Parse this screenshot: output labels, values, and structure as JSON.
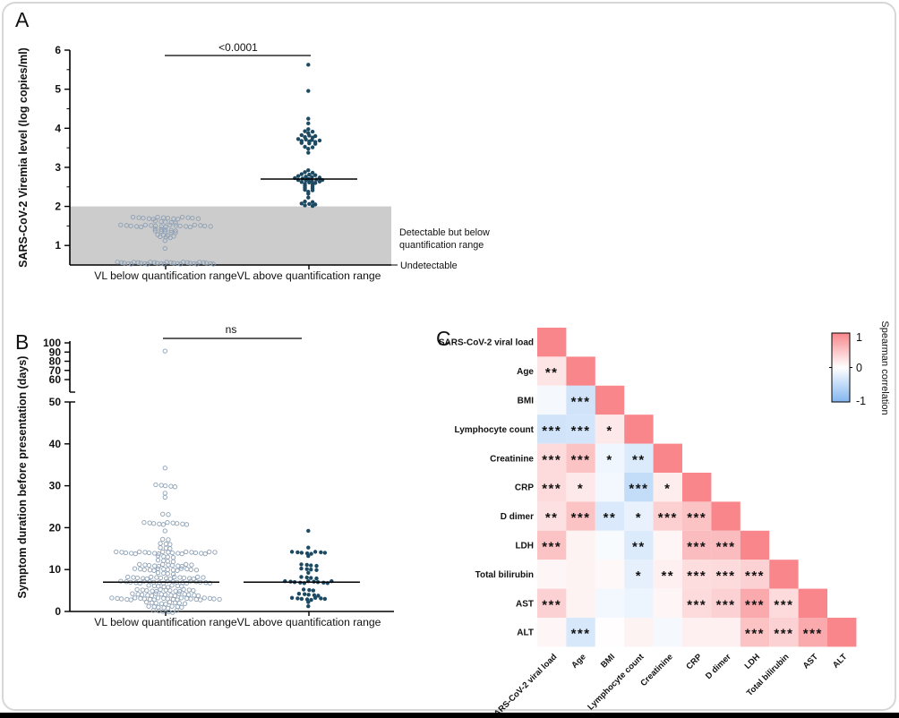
{
  "colors": {
    "filled_marker": "#1d4a63",
    "open_marker_stroke": "#8da0b5",
    "band_fill": "#cccccc",
    "axis": "#000000",
    "heatmap_max": "#f8868a",
    "heatmap_mid": "#ffffff",
    "heatmap_min": "#82b6f0"
  },
  "chart_data": [
    {
      "panel_letter": "A",
      "type": "scatter",
      "title": "",
      "ylabel": "SARS-CoV-2 Viremia level (log copies/ml)",
      "ylim": [
        0.45,
        6.0
      ],
      "yticks": [
        1,
        2,
        3,
        4,
        5,
        6
      ],
      "categories": [
        "VL below quantification range",
        "VL above quantification range"
      ],
      "significance": "<0.0001",
      "shaded_region": {
        "from": 0.45,
        "to": 2.0,
        "label_line1": "Detectable but below",
        "label_line2": "quantification range"
      },
      "undetectable_label": "Undetectable",
      "series": [
        {
          "name": "VL below quantification range",
          "marker": "open-circle",
          "points": [
            [
              0.55,
              30
            ],
            [
              0.9,
              1
            ],
            [
              1.1,
              1
            ],
            [
              1.2,
              3
            ],
            [
              1.25,
              4
            ],
            [
              1.35,
              5
            ],
            [
              1.4,
              5
            ],
            [
              1.5,
              19
            ],
            [
              1.6,
              5
            ],
            [
              1.7,
              14
            ]
          ]
        },
        {
          "name": "VL above quantification range",
          "marker": "filled-circle",
          "median": 2.7,
          "points": [
            [
              2.0,
              2
            ],
            [
              2.05,
              3
            ],
            [
              2.1,
              2
            ],
            [
              2.2,
              1
            ],
            [
              2.3,
              1
            ],
            [
              2.35,
              1
            ],
            [
              2.4,
              2
            ],
            [
              2.45,
              2
            ],
            [
              2.5,
              2
            ],
            [
              2.55,
              2
            ],
            [
              2.6,
              3
            ],
            [
              2.65,
              4
            ],
            [
              2.7,
              5
            ],
            [
              2.75,
              4
            ],
            [
              2.8,
              3
            ],
            [
              2.85,
              2
            ],
            [
              2.9,
              1
            ],
            [
              3.35,
              1
            ],
            [
              3.45,
              1
            ],
            [
              3.5,
              2
            ],
            [
              3.6,
              3
            ],
            [
              3.65,
              3
            ],
            [
              3.7,
              4
            ],
            [
              3.75,
              2
            ],
            [
              3.8,
              3
            ],
            [
              3.85,
              1
            ],
            [
              3.9,
              2
            ],
            [
              3.95,
              1
            ],
            [
              4.1,
              1
            ],
            [
              4.22,
              1
            ],
            [
              4.93,
              1
            ],
            [
              5.6,
              1
            ]
          ]
        }
      ]
    },
    {
      "panel_letter": "B",
      "type": "scatter",
      "title": "",
      "ylabel": "Symptom duration before presentation (days)",
      "ylim": [
        0,
        100
      ],
      "axis_break": [
        50,
        60
      ],
      "yticks_lower": [
        0,
        10,
        20,
        30,
        40,
        50
      ],
      "yticks_upper": [
        60,
        70,
        80,
        90,
        100
      ],
      "categories": [
        "VL below quantification range",
        "VL above quantification range"
      ],
      "significance": "ns",
      "series": [
        {
          "name": "VL below quantification range",
          "marker": "open-circle",
          "median": 7,
          "points": [
            [
              0,
              6
            ],
            [
              1,
              8
            ],
            [
              2,
              9
            ],
            [
              3,
              24
            ],
            [
              4,
              15
            ],
            [
              5,
              13
            ],
            [
              6,
              8
            ],
            [
              7,
              20
            ],
            [
              8,
              17
            ],
            [
              9,
              4
            ],
            [
              10,
              14
            ],
            [
              11,
              12
            ],
            [
              12,
              4
            ],
            [
              13,
              4
            ],
            [
              14,
              22
            ],
            [
              15,
              3
            ],
            [
              16,
              3
            ],
            [
              17,
              2
            ],
            [
              19,
              1
            ],
            [
              21,
              10
            ],
            [
              23,
              2
            ],
            [
              27,
              1
            ],
            [
              28,
              1
            ],
            [
              30,
              5
            ],
            [
              34,
              1
            ],
            [
              90,
              1
            ]
          ]
        },
        {
          "name": "VL above quantification range",
          "marker": "filled-circle",
          "median": 7,
          "points": [
            [
              1,
              1
            ],
            [
              2,
              1
            ],
            [
              3,
              8
            ],
            [
              4,
              5
            ],
            [
              5,
              3
            ],
            [
              7,
              11
            ],
            [
              8,
              4
            ],
            [
              9,
              1
            ],
            [
              10,
              4
            ],
            [
              11,
              4
            ],
            [
              13,
              1
            ],
            [
              14,
              8
            ],
            [
              15,
              1
            ],
            [
              19,
              1
            ]
          ]
        }
      ]
    },
    {
      "panel_letter": "C",
      "type": "heatmap",
      "title": "",
      "variables": [
        "SARS-CoV-2 viral load",
        "Age",
        "BMI",
        "Lymphocyte count",
        "Creatinine",
        "CRP",
        "D dimer",
        "LDH",
        "Total bilirubin",
        "AST",
        "ALT"
      ],
      "correlations_lower_triangle": [
        [
          1
        ],
        [
          0.22,
          1
        ],
        [
          -0.08,
          -0.38,
          1
        ],
        [
          -0.38,
          -0.35,
          0.18,
          1
        ],
        [
          0.3,
          0.5,
          -0.12,
          -0.28,
          1
        ],
        [
          0.3,
          0.18,
          -0.1,
          -0.48,
          0.15,
          1
        ],
        [
          0.25,
          0.5,
          -0.3,
          -0.18,
          0.4,
          0.5,
          1
        ],
        [
          0.5,
          0.1,
          -0.06,
          -0.28,
          0.08,
          0.55,
          0.55,
          1
        ],
        [
          0.08,
          0.1,
          0.06,
          -0.2,
          0.12,
          0.28,
          0.3,
          0.38,
          1
        ],
        [
          0.38,
          0.1,
          -0.1,
          -0.15,
          0.08,
          0.3,
          0.38,
          0.7,
          0.3,
          1
        ],
        [
          0.08,
          -0.32,
          0.02,
          0.1,
          -0.08,
          0.12,
          0.12,
          0.5,
          0.38,
          0.7,
          1
        ]
      ],
      "significance_lower_triangle": [
        [
          ""
        ],
        [
          "**",
          ""
        ],
        [
          "",
          "***",
          ""
        ],
        [
          "***",
          "***",
          "*",
          ""
        ],
        [
          "***",
          "***",
          "*",
          "**",
          ""
        ],
        [
          "***",
          "*",
          "",
          "***",
          "*",
          ""
        ],
        [
          "**",
          "***",
          "**",
          "*",
          "***",
          "***",
          ""
        ],
        [
          "***",
          "",
          "",
          "**",
          "",
          "***",
          "***",
          ""
        ],
        [
          "",
          "",
          "",
          "*",
          "**",
          "***",
          "***",
          "***",
          ""
        ],
        [
          "***",
          "",
          "",
          "",
          "",
          "***",
          "***",
          "***",
          "***",
          ""
        ],
        [
          "",
          "***",
          "",
          "",
          "",
          "",
          "",
          "***",
          "***",
          "***",
          ""
        ]
      ],
      "colorbar": {
        "title": "Spearman correlation",
        "tick_labels": [
          "1",
          "0",
          "-1"
        ],
        "max_color": "#f8868a",
        "mid_color": "#ffffff",
        "min_color": "#82b6f0"
      }
    }
  ]
}
